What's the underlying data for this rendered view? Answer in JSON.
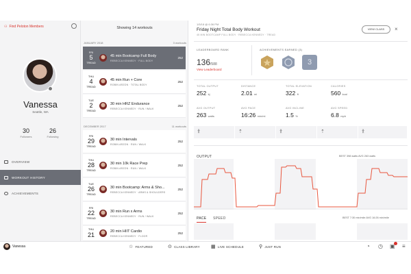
{
  "profile": {
    "find_friends": "Find Peloton Members",
    "name": "Vanessa",
    "location": "Seattle, WA",
    "followers_count": "30",
    "followers_label": "Followers",
    "following_count": "26",
    "following_label": "Following"
  },
  "left_nav": [
    {
      "label": "OVERVIEW"
    },
    {
      "label": "WORKOUT HISTORY"
    },
    {
      "label": "ACHIEVEMENTS"
    }
  ],
  "list": {
    "heading": "Showing 14 workouts",
    "groups": [
      {
        "month": "JANUARY 2018",
        "count": "3 workouts"
      },
      {
        "month": "DECEMBER 2017",
        "count": "11 workouts"
      }
    ],
    "workouts": [
      {
        "dow": "FRI",
        "day": "5",
        "type": "TREAD",
        "title": "45 min Bootcamp Full Body",
        "sub": "REBECCA KENNEDY · FULL BODY",
        "score": "252"
      },
      {
        "dow": "THU",
        "day": "4",
        "type": "TREAD",
        "title": "45 min Run + Core",
        "sub": "ROBIN ARZON · TOTAL BODY",
        "score": "252"
      },
      {
        "dow": "TUE",
        "day": "2",
        "type": "TREAD",
        "title": "30 min HRZ Endurance",
        "sub": "REBECCA KENNEDY · RUN / WALK",
        "score": "252"
      },
      {
        "dow": "FRI",
        "day": "29",
        "type": "TREAD",
        "title": "30 min Intervals",
        "sub": "ROBIN ARZON · RUN / WALK",
        "score": "252"
      },
      {
        "dow": "THU",
        "day": "28",
        "type": "TREAD",
        "title": "30 min 10k Race Prep",
        "sub": "ROBIN ARZON · RUN / WALK",
        "score": "252"
      },
      {
        "dow": "TUE",
        "day": "26",
        "type": "TREAD",
        "title": "30 min Bootcamp: Arms & Sho...",
        "sub": "REBECCA KENNEDY · ARMS & SHOULDERS",
        "score": "252"
      },
      {
        "dow": "FRI",
        "day": "22",
        "type": "TREAD",
        "title": "30 min Run x Arms",
        "sub": "REBECCA KENNEDY · RUN / WALK",
        "score": "252"
      },
      {
        "dow": "THU",
        "day": "21",
        "type": "TREAD",
        "title": "20 min HIIT Cardio",
        "sub": "REBECCA KENNEDY · FLOOR",
        "score": "252"
      }
    ]
  },
  "detail": {
    "date": "1/5/18 @ 6:36 PM",
    "title": "Friday Night Total Body Workout",
    "sub": "45 MIN BOOTCAMP FULL BODY · REBECCA KENNEDY · TREAD",
    "view_class": "VIEW CLASS",
    "leaderboard_label": "LEADERBOARD RANK",
    "rank": "136",
    "rank_total": "/588",
    "view_leaderboard": "View Leaderboard",
    "achievements_label": "ACHIEVEMENTS EARNED (3)",
    "badge_number": "3",
    "metrics_row1": [
      {
        "label": "TOTAL OUTPUT",
        "value": "252",
        "unit": "kj"
      },
      {
        "label": "DISTANCE",
        "value": "2.01",
        "unit": "mi"
      },
      {
        "label": "TOTAL ELEVATION",
        "value": "322",
        "unit": "ft"
      },
      {
        "label": "CALORIES",
        "value": "560",
        "unit": "kcal"
      }
    ],
    "metrics_row2": [
      {
        "label": "AVG OUTPUT",
        "value": "263",
        "unit": "watts"
      },
      {
        "label": "AVG PACE",
        "value": "16:26",
        "unit": "min/mi"
      },
      {
        "label": "AVG INCLINE",
        "value": "1.5",
        "unit": "%"
      },
      {
        "label": "AVG SPEED",
        "value": "6.8",
        "unit": "mph"
      }
    ],
    "output_label": "OUTPUT",
    "output_stats": "BEST 398 watts     AVG 263 watts",
    "pace_tab": "PACE",
    "speed_tab": "SPEED",
    "pace_stats": "BEST 7:30 min/mile     AVG 16:26 min/mile"
  },
  "bottom_nav": {
    "user": "Vanessa",
    "items": [
      {
        "label": "FEATURED",
        "icon": "star-icon"
      },
      {
        "label": "CLASS LIBRARY",
        "icon": "play-icon"
      },
      {
        "label": "LIVE SCHEDULE",
        "icon": "calendar-icon"
      },
      {
        "label": "JUST RUN",
        "icon": "run-icon"
      }
    ]
  },
  "colors": {
    "accent": "#d9322b",
    "selected": "#6b6e76",
    "gold": "#c9a35c",
    "slate": "#8f9bb0"
  }
}
